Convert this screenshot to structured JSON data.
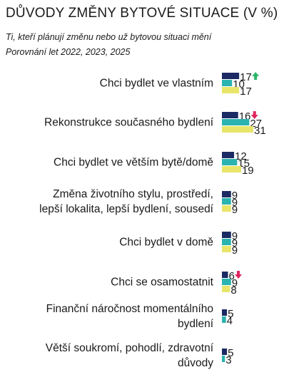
{
  "header": {
    "title": "DŮVODY ZMĚNY BYTOVÉ SITUACE (V %)",
    "subtitle": "Ti, kteří plánují změnu nebo už bytovou situaci mění",
    "subtitle2": "Porovnání let 2022, 2023, 2025"
  },
  "chart_data": {
    "type": "bar",
    "orientation": "horizontal",
    "title": "DŮVODY ZMĚNY BYTOVÉ SITUACE (V %)",
    "categories": [
      [
        "Chci bydlet ve vlastním"
      ],
      [
        "Rekonstrukce současného bydlení"
      ],
      [
        "Chci bydlet ve větším bytě/domě"
      ],
      [
        "Změna životního stylu, prostředí,",
        "lepší lokalita, lepší bydlení, sousedí"
      ],
      [
        "Chci bydlet v domě"
      ],
      [
        "Chci se osamostatnit"
      ],
      [
        "Finanční náročnost momentálního",
        "bydlení"
      ],
      [
        "Větší soukromí, pohodlí, zdravotní",
        "důvody"
      ]
    ],
    "series": [
      {
        "name": "2022",
        "color": "#1b2a63",
        "values": [
          17,
          16,
          12,
          9,
          9,
          6,
          5,
          5
        ]
      },
      {
        "name": "2023",
        "color": "#2bb3b0",
        "values": [
          10,
          27,
          15,
          9,
          9,
          9,
          4,
          3
        ]
      },
      {
        "name": "2025",
        "color": "#e8e56a",
        "values": [
          17,
          31,
          19,
          9,
          9,
          8,
          null,
          null
        ]
      }
    ],
    "trend_markers": [
      {
        "category_index": 0,
        "direction": "up",
        "color": "#2bb36a"
      },
      {
        "category_index": 1,
        "direction": "down",
        "color": "#e0245e"
      },
      {
        "category_index": 5,
        "direction": "down",
        "color": "#e0245e"
      }
    ],
    "legend": "none",
    "grid": false
  }
}
